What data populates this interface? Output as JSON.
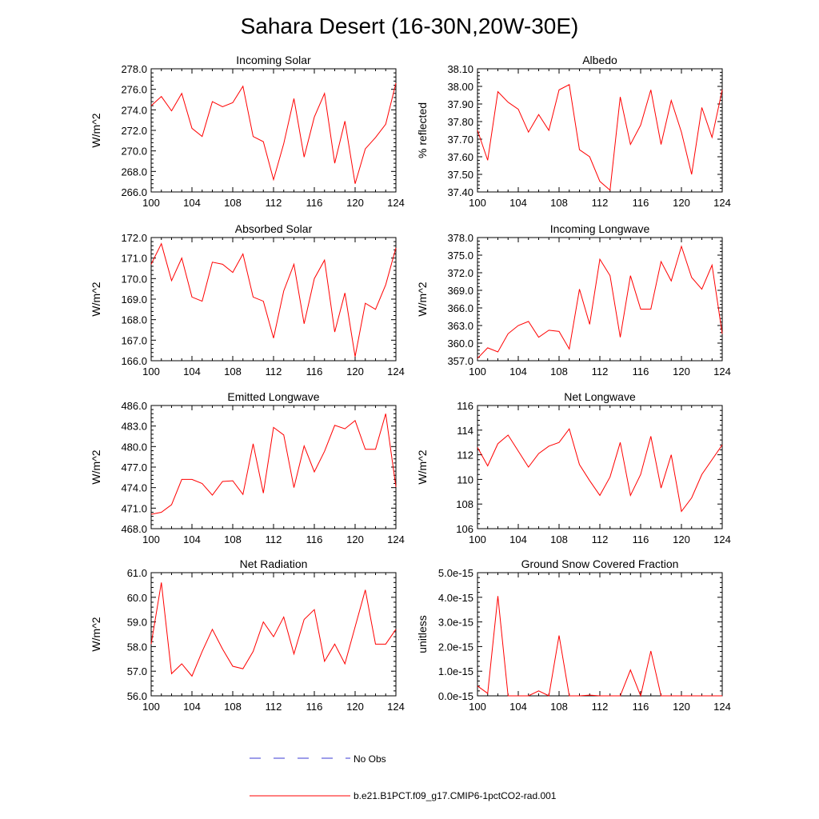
{
  "title": "Sahara Desert (16-30N,20W-30E)",
  "colors": {
    "model": "#ff0000",
    "obs": "#3b3bd6",
    "axis": "#000000"
  },
  "legend": {
    "obs_label": "No Obs",
    "model_label": "b.e21.B1PCT.f09_g17.CMIP6-1pctCO2-rad.001"
  },
  "chart_data": [
    {
      "type": "line",
      "title": "Incoming Solar",
      "ylabel": "W/m^2",
      "xlim": [
        100,
        124
      ],
      "ylim": [
        266.0,
        278.0
      ],
      "xticks": [
        "100",
        "104",
        "108",
        "112",
        "116",
        "120",
        "124"
      ],
      "yticks": [
        "266.0",
        "268.0",
        "270.0",
        "272.0",
        "274.0",
        "276.0",
        "278.0"
      ],
      "x": [
        100,
        101,
        102,
        103,
        104,
        105,
        106,
        107,
        108,
        109,
        110,
        111,
        112,
        113,
        114,
        115,
        116,
        117,
        118,
        119,
        120,
        121,
        122,
        123,
        124
      ],
      "series": [
        {
          "values": [
            274.4,
            275.3,
            273.9,
            275.6,
            272.2,
            271.4,
            274.8,
            274.3,
            274.7,
            276.3,
            271.4,
            270.9,
            267.2,
            270.7,
            275.1,
            269.4,
            273.3,
            275.6,
            268.8,
            272.9,
            266.8,
            270.2,
            271.3,
            272.6,
            276.6
          ]
        }
      ]
    },
    {
      "type": "line",
      "title": "Albedo",
      "ylabel": "% reflected",
      "xlim": [
        100,
        124
      ],
      "ylim": [
        37.4,
        38.1
      ],
      "xticks": [
        "100",
        "104",
        "108",
        "112",
        "116",
        "120",
        "124"
      ],
      "yticks": [
        "37.40",
        "37.50",
        "37.60",
        "37.70",
        "37.80",
        "37.90",
        "38.00",
        "38.10"
      ],
      "x": [
        100,
        101,
        102,
        103,
        104,
        105,
        106,
        107,
        108,
        109,
        110,
        111,
        112,
        113,
        114,
        115,
        116,
        117,
        118,
        119,
        120,
        121,
        122,
        123,
        124
      ],
      "series": [
        {
          "values": [
            37.75,
            37.58,
            37.97,
            37.91,
            37.87,
            37.74,
            37.84,
            37.75,
            37.98,
            38.01,
            37.64,
            37.6,
            37.46,
            37.41,
            37.94,
            37.67,
            37.78,
            37.98,
            37.67,
            37.92,
            37.74,
            37.5,
            37.88,
            37.71,
            37.98
          ]
        }
      ]
    },
    {
      "type": "line",
      "title": "Absorbed Solar",
      "ylabel": "W/m^2",
      "xlim": [
        100,
        124
      ],
      "ylim": [
        166.0,
        172.0
      ],
      "xticks": [
        "100",
        "104",
        "108",
        "112",
        "116",
        "120",
        "124"
      ],
      "yticks": [
        "166.0",
        "167.0",
        "168.0",
        "169.0",
        "170.0",
        "171.0",
        "172.0"
      ],
      "x": [
        100,
        101,
        102,
        103,
        104,
        105,
        106,
        107,
        108,
        109,
        110,
        111,
        112,
        113,
        114,
        115,
        116,
        117,
        118,
        119,
        120,
        121,
        122,
        123,
        124
      ],
      "series": [
        {
          "values": [
            170.7,
            171.7,
            169.9,
            171.0,
            169.1,
            168.9,
            170.8,
            170.7,
            170.3,
            171.2,
            169.1,
            168.9,
            167.1,
            169.4,
            170.7,
            167.8,
            170.0,
            170.9,
            167.4,
            169.3,
            166.2,
            168.8,
            168.5,
            169.7,
            171.5
          ]
        }
      ]
    },
    {
      "type": "line",
      "title": "Incoming Longwave",
      "ylabel": "W/m^2",
      "xlim": [
        100,
        124
      ],
      "ylim": [
        357.0,
        378.0
      ],
      "xticks": [
        "100",
        "104",
        "108",
        "112",
        "116",
        "120",
        "124"
      ],
      "yticks": [
        "357.0",
        "360.0",
        "363.0",
        "366.0",
        "369.0",
        "372.0",
        "375.0",
        "378.0"
      ],
      "x": [
        100,
        101,
        102,
        103,
        104,
        105,
        106,
        107,
        108,
        109,
        110,
        111,
        112,
        113,
        114,
        115,
        116,
        117,
        118,
        119,
        120,
        121,
        122,
        123,
        124
      ],
      "series": [
        {
          "values": [
            357.4,
            359.2,
            358.5,
            361.6,
            363.0,
            363.7,
            361.0,
            362.2,
            362.0,
            359.0,
            369.2,
            363.2,
            374.3,
            371.5,
            361.0,
            371.5,
            365.8,
            365.8,
            373.9,
            370.6,
            376.5,
            371.2,
            369.2,
            373.3,
            361.6
          ]
        }
      ]
    },
    {
      "type": "line",
      "title": "Emitted Longwave",
      "ylabel": "W/m^2",
      "xlim": [
        100,
        124
      ],
      "ylim": [
        468.0,
        486.0
      ],
      "xticks": [
        "100",
        "104",
        "108",
        "112",
        "116",
        "120",
        "124"
      ],
      "yticks": [
        "468.0",
        "471.0",
        "474.0",
        "477.0",
        "480.0",
        "483.0",
        "486.0"
      ],
      "x": [
        100,
        101,
        102,
        103,
        104,
        105,
        106,
        107,
        108,
        109,
        110,
        111,
        112,
        113,
        114,
        115,
        116,
        117,
        118,
        119,
        120,
        121,
        122,
        123,
        124
      ],
      "series": [
        {
          "values": [
            470.1,
            470.4,
            471.5,
            475.2,
            475.2,
            474.6,
            472.9,
            474.9,
            475.0,
            473.0,
            480.4,
            473.2,
            482.8,
            481.7,
            474.0,
            480.1,
            476.3,
            479.3,
            483.1,
            482.6,
            483.8,
            479.6,
            479.6,
            484.8,
            474.1
          ]
        }
      ]
    },
    {
      "type": "line",
      "title": "Net Longwave",
      "ylabel": "W/m^2",
      "xlim": [
        100,
        124
      ],
      "ylim": [
        106,
        116
      ],
      "xticks": [
        "100",
        "104",
        "108",
        "112",
        "116",
        "120",
        "124"
      ],
      "yticks": [
        "106",
        "108",
        "110",
        "112",
        "114",
        "116"
      ],
      "x": [
        100,
        101,
        102,
        103,
        104,
        105,
        106,
        107,
        108,
        109,
        110,
        111,
        112,
        113,
        114,
        115,
        116,
        117,
        118,
        119,
        120,
        121,
        122,
        123,
        124
      ],
      "series": [
        {
          "values": [
            112.6,
            111.1,
            112.9,
            113.6,
            112.3,
            111.0,
            112.1,
            112.7,
            113.0,
            114.1,
            111.2,
            109.9,
            108.7,
            110.2,
            113.0,
            108.7,
            110.4,
            113.5,
            109.3,
            112.0,
            107.4,
            108.5,
            110.4,
            111.6,
            112.8
          ]
        }
      ]
    },
    {
      "type": "line",
      "title": "Net Radiation",
      "ylabel": "W/m^2",
      "xlim": [
        100,
        124
      ],
      "ylim": [
        56.0,
        61.0
      ],
      "xticks": [
        "100",
        "104",
        "108",
        "112",
        "116",
        "120",
        "124"
      ],
      "yticks": [
        "56.0",
        "57.0",
        "58.0",
        "59.0",
        "60.0",
        "61.0"
      ],
      "x": [
        100,
        101,
        102,
        103,
        104,
        105,
        106,
        107,
        108,
        109,
        110,
        111,
        112,
        113,
        114,
        115,
        116,
        117,
        118,
        119,
        120,
        121,
        122,
        123,
        124
      ],
      "series": [
        {
          "values": [
            58.1,
            60.6,
            56.9,
            57.3,
            56.8,
            57.8,
            58.7,
            57.9,
            57.2,
            57.1,
            57.8,
            59.0,
            58.4,
            59.2,
            57.7,
            59.1,
            59.5,
            57.4,
            58.1,
            57.3,
            58.8,
            60.3,
            58.1,
            58.1,
            58.7
          ]
        }
      ]
    },
    {
      "type": "line",
      "title": "Ground Snow Covered Fraction",
      "ylabel": "unitless",
      "xlim": [
        100,
        124
      ],
      "ylim": [
        0,
        5e-15
      ],
      "xticks": [
        "100",
        "104",
        "108",
        "112",
        "116",
        "120",
        "124"
      ],
      "yticks": [
        "0.0e-15",
        "1.0e-15",
        "2.0e-15",
        "3.0e-15",
        "4.0e-15",
        "5.0e-15"
      ],
      "x": [
        100,
        101,
        102,
        103,
        104,
        105,
        106,
        107,
        108,
        109,
        110,
        111,
        112,
        113,
        114,
        115,
        116,
        117,
        118,
        119,
        120,
        121,
        122,
        123,
        124
      ],
      "series": [
        {
          "values": [
            4e-16,
            1e-16,
            4.05e-15,
            0,
            0,
            0,
            2e-16,
            0,
            2.45e-15,
            0,
            0,
            3e-17,
            0,
            0,
            0,
            1.05e-15,
            0,
            1.82e-15,
            0,
            0,
            0,
            0,
            0,
            0,
            0
          ]
        }
      ]
    }
  ]
}
